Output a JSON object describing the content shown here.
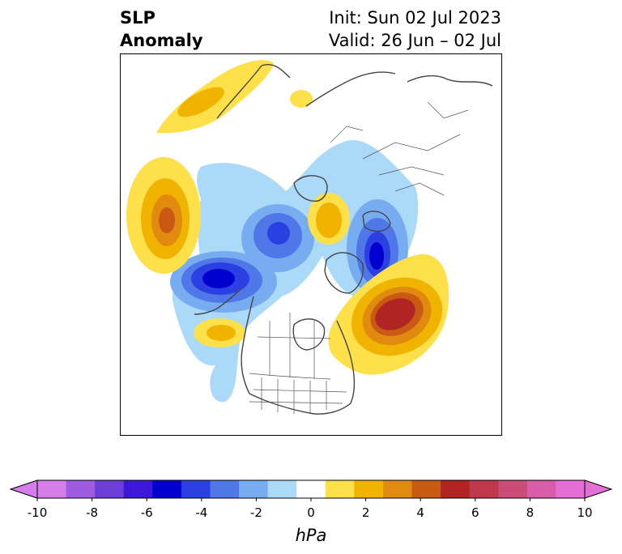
{
  "title": {
    "left_line1": "SLP",
    "left_line2": "Anomaly",
    "right_line1": "Init: Sun 02 Jul 2023",
    "right_line2": "Valid: 26 Jun – 02 Jul"
  },
  "colorbar": {
    "unit": "hPa",
    "tick_labels": [
      "-10",
      "-8",
      "-6",
      "-4",
      "-2",
      "0",
      "2",
      "4",
      "6",
      "8",
      "10"
    ],
    "colors": [
      "#d67ee8",
      "#9e5de0",
      "#6c3fd9",
      "#3e18d8",
      "#0000cf",
      "#2b40e0",
      "#4f77e8",
      "#77adf0",
      "#abd9f8",
      "#ffffff",
      "#fde04a",
      "#f0b400",
      "#e08a10",
      "#c85a14",
      "#b02424",
      "#c0384c",
      "#cc4c78",
      "#d85ca8",
      "#e56fd6"
    ],
    "extend_left_color": "#d67ee8",
    "extend_right_color": "#e56fd6"
  },
  "map": {
    "projection": "north-polar-stereographic",
    "field": "sea-level-pressure-anomaly",
    "highs": [
      {
        "name": "north-atlantic-high",
        "peak_hpa": 6
      },
      {
        "name": "north-pacific-high",
        "peak_hpa": 4
      },
      {
        "name": "kara-sea-high",
        "peak_hpa": 2
      },
      {
        "name": "west-central-russia-high",
        "peak_hpa": 2
      }
    ],
    "lows": [
      {
        "name": "alaska-bering-low",
        "peak_hpa": -6
      },
      {
        "name": "greenland-low",
        "peak_hpa": -6
      },
      {
        "name": "east-siberia-low",
        "peak_hpa": -4
      }
    ]
  }
}
